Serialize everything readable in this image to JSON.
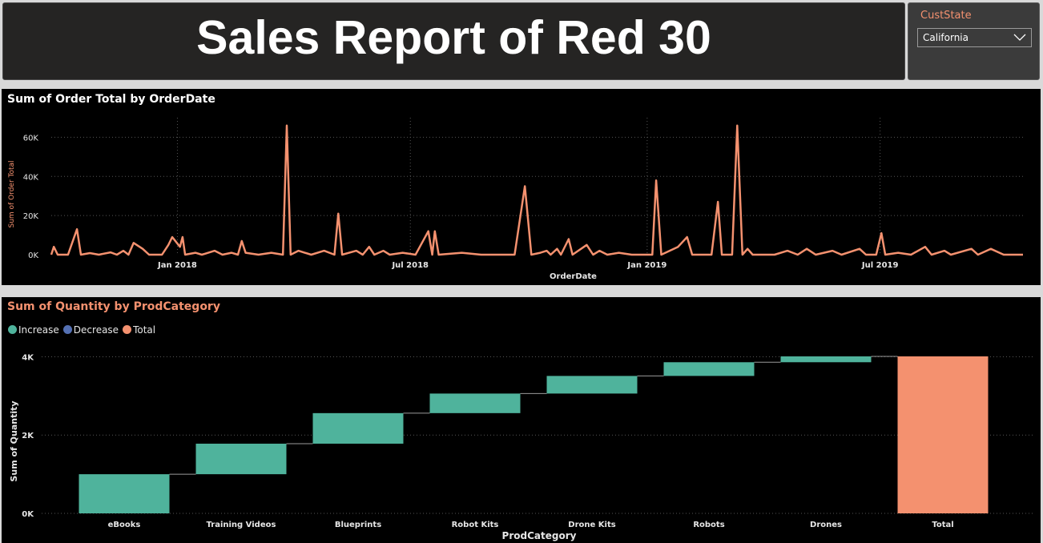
{
  "header": {
    "title": "Sales Report of Red 30"
  },
  "slicer": {
    "label": "CustState",
    "value": "California"
  },
  "chart_data": [
    {
      "type": "line",
      "title": "Sum of Order Total by OrderDate",
      "xlabel": "OrderDate",
      "ylabel": "Sum of Order Total",
      "x_ticks": [
        "Jan 2018",
        "Jul 2018",
        "Jan 2019",
        "Jul 2019"
      ],
      "y_ticks": [
        "0K",
        "20K",
        "40K",
        "60K"
      ],
      "ylim": [
        0,
        70000
      ],
      "xlim": [
        "2017-09-25",
        "2019-10-20"
      ],
      "grid": true,
      "color": "#f4916f",
      "points": [
        [
          "2017-09-25",
          0
        ],
        [
          "2017-09-27",
          4000
        ],
        [
          "2017-09-30",
          0
        ],
        [
          "2017-10-08",
          0
        ],
        [
          "2017-10-15",
          13000
        ],
        [
          "2017-10-18",
          0
        ],
        [
          "2017-10-25",
          800
        ],
        [
          "2017-11-01",
          0
        ],
        [
          "2017-11-10",
          1200
        ],
        [
          "2017-11-15",
          0
        ],
        [
          "2017-11-20",
          2000
        ],
        [
          "2017-11-24",
          0
        ],
        [
          "2017-11-28",
          6000
        ],
        [
          "2017-12-05",
          3000
        ],
        [
          "2017-12-10",
          0
        ],
        [
          "2017-12-20",
          0
        ],
        [
          "2017-12-25",
          5000
        ],
        [
          "2017-12-28",
          9000
        ],
        [
          "2018-01-03",
          4000
        ],
        [
          "2018-01-05",
          9000
        ],
        [
          "2018-01-07",
          0
        ],
        [
          "2018-01-15",
          1000
        ],
        [
          "2018-01-20",
          0
        ],
        [
          "2018-01-30",
          2000
        ],
        [
          "2018-02-05",
          0
        ],
        [
          "2018-02-12",
          1000
        ],
        [
          "2018-02-17",
          0
        ],
        [
          "2018-02-20",
          7000
        ],
        [
          "2018-02-23",
          1000
        ],
        [
          "2018-03-05",
          0
        ],
        [
          "2018-03-15",
          1000
        ],
        [
          "2018-03-24",
          0
        ],
        [
          "2018-03-27",
          66000
        ],
        [
          "2018-03-30",
          0
        ],
        [
          "2018-04-05",
          2000
        ],
        [
          "2018-04-15",
          0
        ],
        [
          "2018-04-25",
          2000
        ],
        [
          "2018-05-03",
          0
        ],
        [
          "2018-05-06",
          21000
        ],
        [
          "2018-05-09",
          0
        ],
        [
          "2018-05-20",
          2000
        ],
        [
          "2018-05-25",
          0
        ],
        [
          "2018-05-30",
          4000
        ],
        [
          "2018-06-03",
          0
        ],
        [
          "2018-06-10",
          2000
        ],
        [
          "2018-06-15",
          0
        ],
        [
          "2018-06-25",
          1000
        ],
        [
          "2018-07-05",
          0
        ],
        [
          "2018-07-15",
          12000
        ],
        [
          "2018-07-18",
          0
        ],
        [
          "2018-07-20",
          12000
        ],
        [
          "2018-07-23",
          0
        ],
        [
          "2018-08-10",
          1000
        ],
        [
          "2018-08-25",
          0
        ],
        [
          "2018-09-20",
          0
        ],
        [
          "2018-09-28",
          35000
        ],
        [
          "2018-10-03",
          0
        ],
        [
          "2018-10-10",
          1000
        ],
        [
          "2018-10-15",
          2000
        ],
        [
          "2018-10-18",
          0
        ],
        [
          "2018-10-23",
          3000
        ],
        [
          "2018-10-26",
          0
        ],
        [
          "2018-11-01",
          8000
        ],
        [
          "2018-11-04",
          0
        ],
        [
          "2018-11-15",
          5000
        ],
        [
          "2018-11-20",
          0
        ],
        [
          "2018-11-25",
          2000
        ],
        [
          "2018-12-01",
          0
        ],
        [
          "2018-12-10",
          1000
        ],
        [
          "2018-12-20",
          0
        ],
        [
          "2019-01-05",
          0
        ],
        [
          "2019-01-08",
          38000
        ],
        [
          "2019-01-12",
          0
        ],
        [
          "2019-01-25",
          4000
        ],
        [
          "2019-02-01",
          9000
        ],
        [
          "2019-02-05",
          0
        ],
        [
          "2019-02-20",
          0
        ],
        [
          "2019-02-25",
          27000
        ],
        [
          "2019-02-28",
          0
        ],
        [
          "2019-03-08",
          0
        ],
        [
          "2019-03-12",
          66000
        ],
        [
          "2019-03-16",
          0
        ],
        [
          "2019-03-20",
          3000
        ],
        [
          "2019-03-24",
          0
        ],
        [
          "2019-04-10",
          0
        ],
        [
          "2019-04-20",
          2000
        ],
        [
          "2019-04-28",
          0
        ],
        [
          "2019-05-05",
          3000
        ],
        [
          "2019-05-12",
          0
        ],
        [
          "2019-05-25",
          2000
        ],
        [
          "2019-06-01",
          0
        ],
        [
          "2019-06-15",
          3000
        ],
        [
          "2019-06-20",
          0
        ],
        [
          "2019-06-28",
          0
        ],
        [
          "2019-07-02",
          11000
        ],
        [
          "2019-07-05",
          0
        ],
        [
          "2019-07-15",
          1000
        ],
        [
          "2019-07-25",
          0
        ],
        [
          "2019-08-05",
          4000
        ],
        [
          "2019-08-10",
          0
        ],
        [
          "2019-08-20",
          2000
        ],
        [
          "2019-08-25",
          0
        ],
        [
          "2019-09-10",
          3000
        ],
        [
          "2019-09-15",
          0
        ],
        [
          "2019-09-25",
          3000
        ],
        [
          "2019-10-05",
          0
        ],
        [
          "2019-10-20",
          0
        ]
      ]
    },
    {
      "type": "bar",
      "subtype": "waterfall",
      "title": "Sum of Quantity by ProdCategory",
      "xlabel": "ProdCategory",
      "ylabel": "Sum of Quantity",
      "categories": [
        "eBooks",
        "Training Videos",
        "Blueprints",
        "Robot Kits",
        "Drone Kits",
        "Robots",
        "Drones",
        "Total"
      ],
      "values": [
        1000,
        780,
        780,
        500,
        450,
        350,
        150,
        4010
      ],
      "kinds": [
        "increase",
        "increase",
        "increase",
        "increase",
        "increase",
        "increase",
        "increase",
        "total"
      ],
      "y_ticks": [
        "0K",
        "2K",
        "4K"
      ],
      "ylim": [
        0,
        4500
      ],
      "grid": true,
      "legend": [
        {
          "label": "Increase",
          "color": "#4fb39c"
        },
        {
          "label": "Decrease",
          "color": "#5470b3"
        },
        {
          "label": "Total",
          "color": "#f4916f"
        }
      ],
      "legend_position": "top-left"
    }
  ]
}
